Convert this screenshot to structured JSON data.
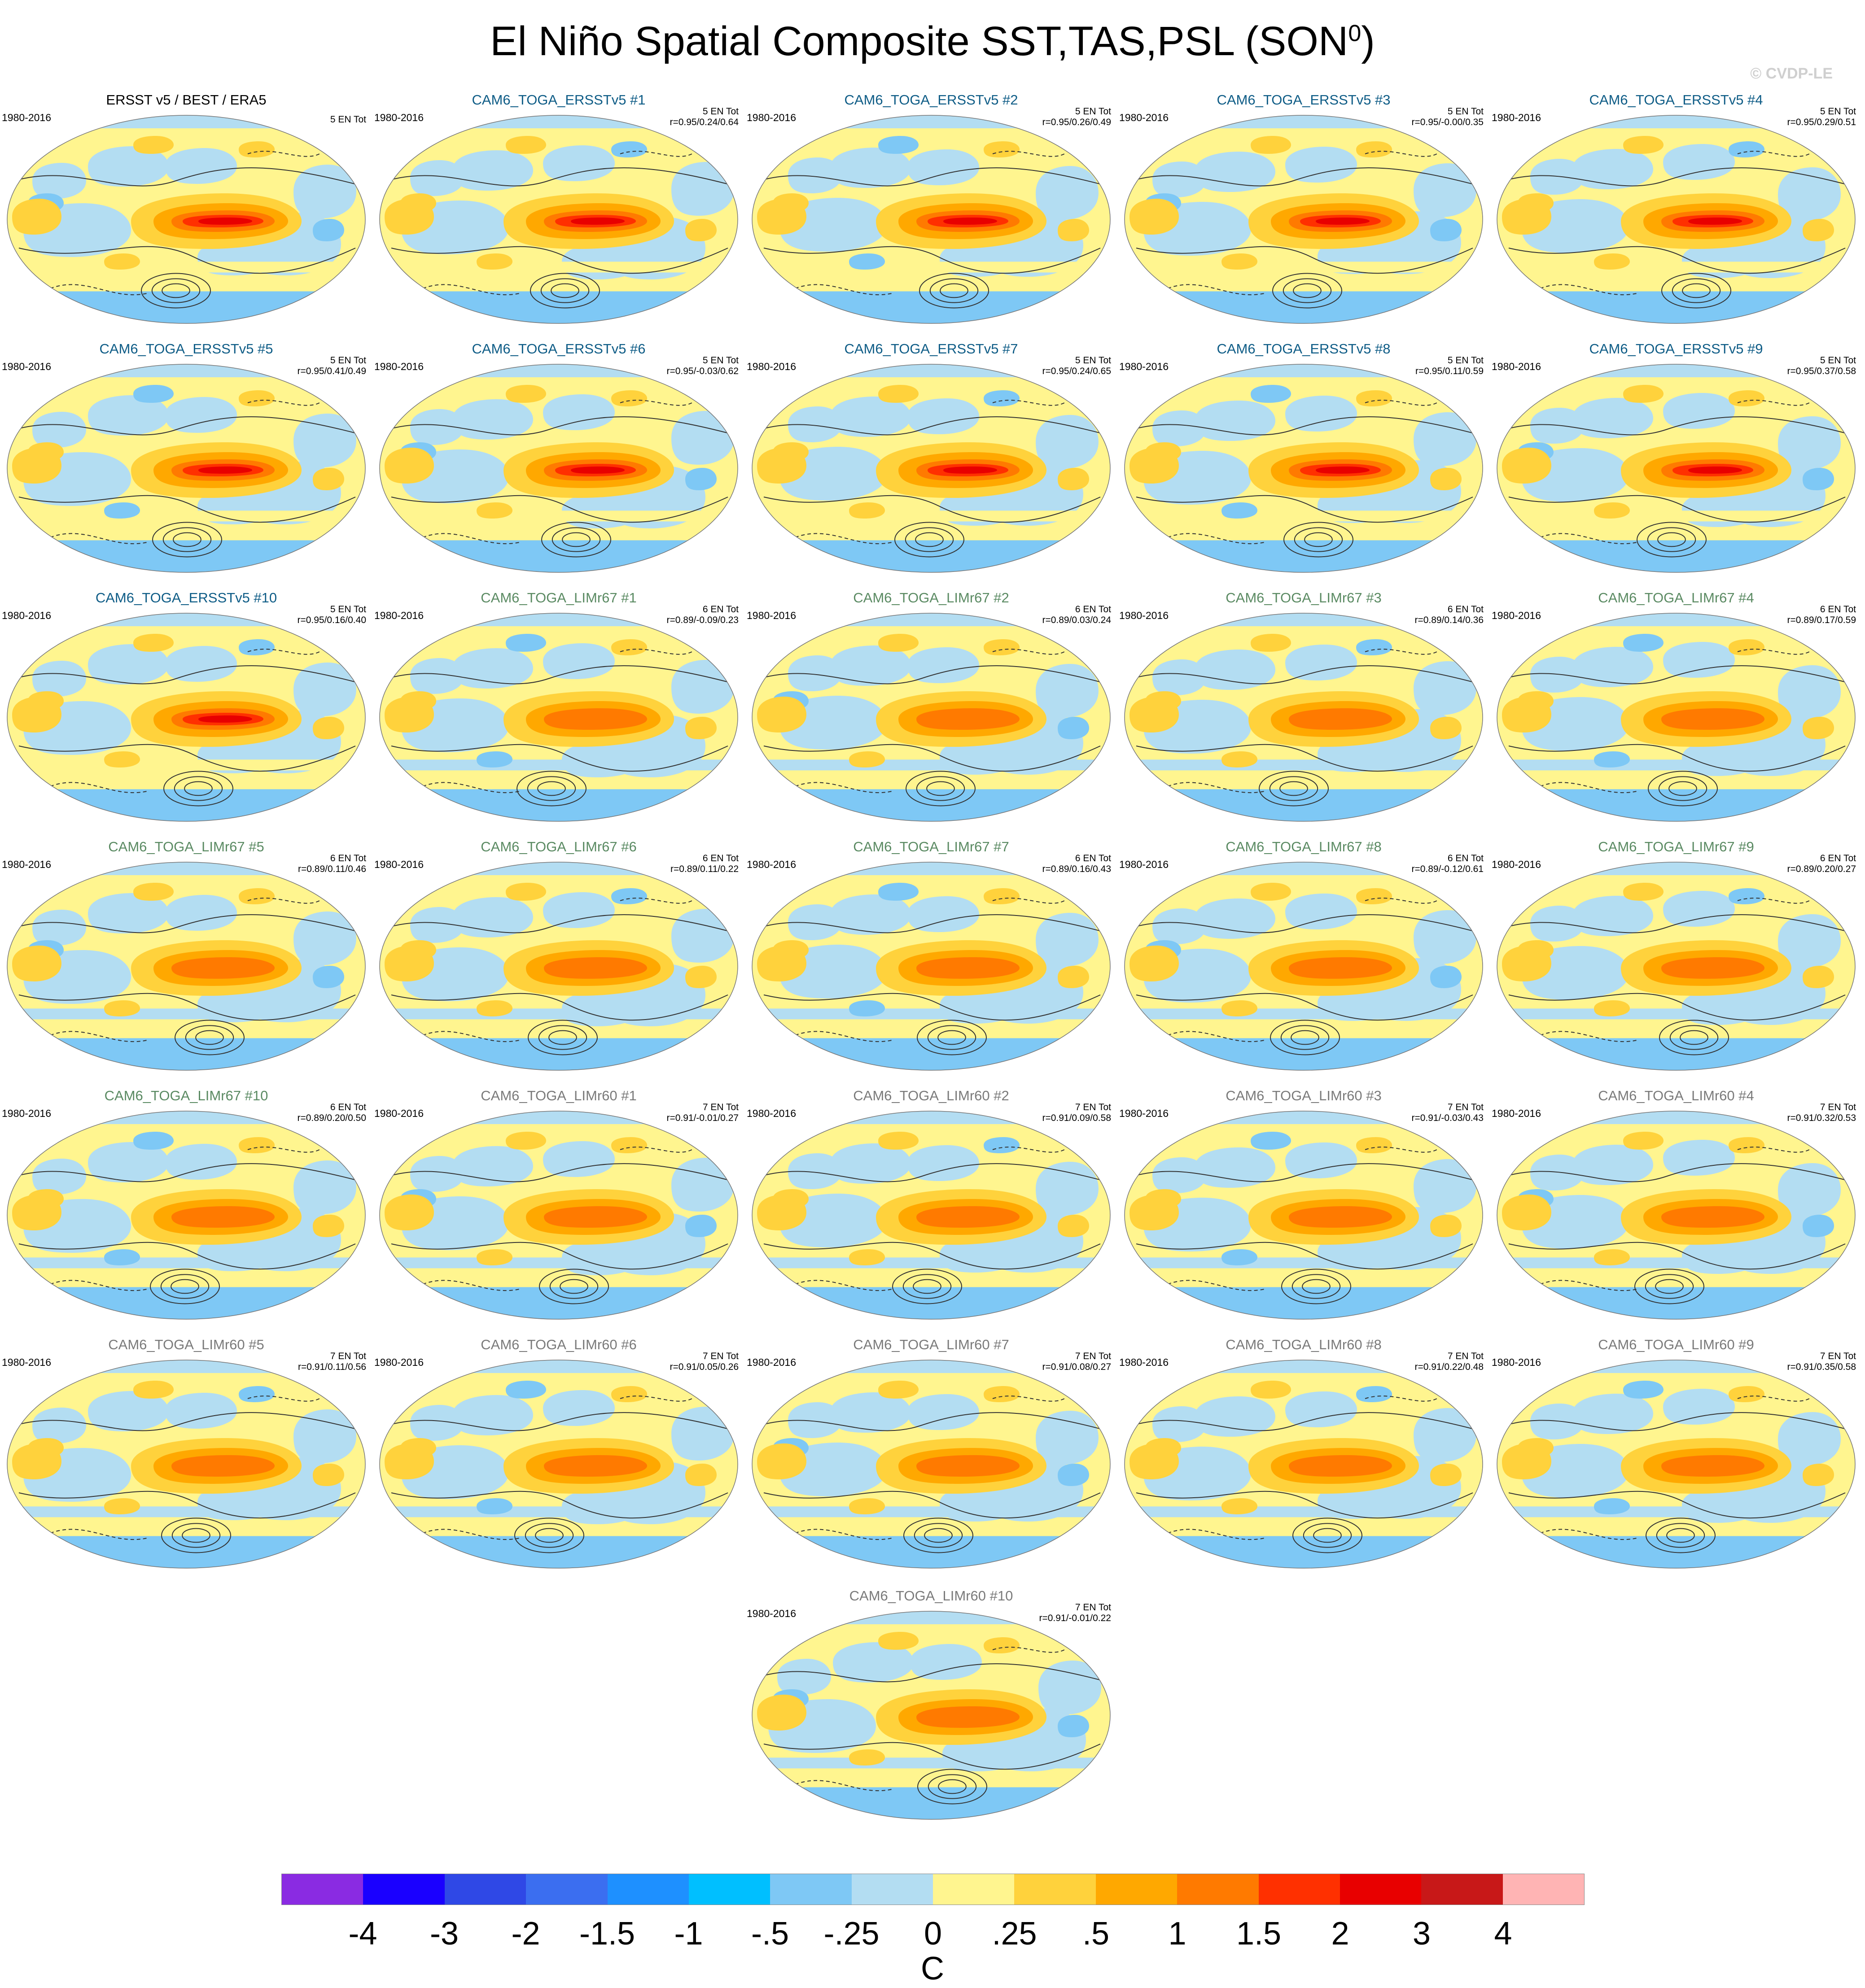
{
  "title": "El Niño Spatial Composite SST,TAS,PSL (SON",
  "title_superscript": "0",
  "title_close": ")",
  "copyright": "© CVDP-LE",
  "colorbar": {
    "colors": [
      "#8a2be2",
      "#1a00ff",
      "#2f48e6",
      "#3b6ef0",
      "#1e90ff",
      "#00bfff",
      "#7ec8f5",
      "#b3ddf2",
      "#fff58f",
      "#ffd23c",
      "#ffa800",
      "#ff7a00",
      "#ff3000",
      "#e80000",
      "#c81818",
      "#ffb4b4"
    ],
    "labels": [
      "-4",
      "-3",
      "-2",
      "-1.5",
      "-1",
      "-.5",
      "-.25",
      "0",
      ".25",
      ".5",
      "1",
      "1.5",
      "2",
      "3",
      "4"
    ],
    "unit": "C"
  },
  "panels": [
    {
      "title": "ERSST v5 / BEST / ERA5",
      "group": "obs",
      "period": "1980-2016",
      "count": "5 EN Tot",
      "corr": ""
    },
    {
      "title": "CAM6_TOGA_ERSSTv5 #1",
      "group": "ersst",
      "period": "1980-2016",
      "count": "5 EN Tot",
      "corr": "r=0.95/0.24/0.64"
    },
    {
      "title": "CAM6_TOGA_ERSSTv5 #2",
      "group": "ersst",
      "period": "1980-2016",
      "count": "5 EN Tot",
      "corr": "r=0.95/0.26/0.49"
    },
    {
      "title": "CAM6_TOGA_ERSSTv5 #3",
      "group": "ersst",
      "period": "1980-2016",
      "count": "5 EN Tot",
      "corr": "r=0.95/-0.00/0.35"
    },
    {
      "title": "CAM6_TOGA_ERSSTv5 #4",
      "group": "ersst",
      "period": "1980-2016",
      "count": "5 EN Tot",
      "corr": "r=0.95/0.29/0.51"
    },
    {
      "title": "CAM6_TOGA_ERSSTv5 #5",
      "group": "ersst",
      "period": "1980-2016",
      "count": "5 EN Tot",
      "corr": "r=0.95/0.41/0.49"
    },
    {
      "title": "CAM6_TOGA_ERSSTv5 #6",
      "group": "ersst",
      "period": "1980-2016",
      "count": "5 EN Tot",
      "corr": "r=0.95/-0.03/0.62"
    },
    {
      "title": "CAM6_TOGA_ERSSTv5 #7",
      "group": "ersst",
      "period": "1980-2016",
      "count": "5 EN Tot",
      "corr": "r=0.95/0.24/0.65"
    },
    {
      "title": "CAM6_TOGA_ERSSTv5 #8",
      "group": "ersst",
      "period": "1980-2016",
      "count": "5 EN Tot",
      "corr": "r=0.95/0.11/0.59"
    },
    {
      "title": "CAM6_TOGA_ERSSTv5 #9",
      "group": "ersst",
      "period": "1980-2016",
      "count": "5 EN Tot",
      "corr": "r=0.95/0.37/0.58"
    },
    {
      "title": "CAM6_TOGA_ERSSTv5 #10",
      "group": "ersst",
      "period": "1980-2016",
      "count": "5 EN Tot",
      "corr": "r=0.95/0.16/0.40"
    },
    {
      "title": "CAM6_TOGA_LIMr67 #1",
      "group": "limr67",
      "period": "1980-2016",
      "count": "6 EN Tot",
      "corr": "r=0.89/-0.09/0.23"
    },
    {
      "title": "CAM6_TOGA_LIMr67 #2",
      "group": "limr67",
      "period": "1980-2016",
      "count": "6 EN Tot",
      "corr": "r=0.89/0.03/0.24"
    },
    {
      "title": "CAM6_TOGA_LIMr67 #3",
      "group": "limr67",
      "period": "1980-2016",
      "count": "6 EN Tot",
      "corr": "r=0.89/0.14/0.36"
    },
    {
      "title": "CAM6_TOGA_LIMr67 #4",
      "group": "limr67",
      "period": "1980-2016",
      "count": "6 EN Tot",
      "corr": "r=0.89/0.17/0.59"
    },
    {
      "title": "CAM6_TOGA_LIMr67 #5",
      "group": "limr67",
      "period": "1980-2016",
      "count": "6 EN Tot",
      "corr": "r=0.89/0.11/0.46"
    },
    {
      "title": "CAM6_TOGA_LIMr67 #6",
      "group": "limr67",
      "period": "1980-2016",
      "count": "6 EN Tot",
      "corr": "r=0.89/0.11/0.22"
    },
    {
      "title": "CAM6_TOGA_LIMr67 #7",
      "group": "limr67",
      "period": "1980-2016",
      "count": "6 EN Tot",
      "corr": "r=0.89/0.16/0.43"
    },
    {
      "title": "CAM6_TOGA_LIMr67 #8",
      "group": "limr67",
      "period": "1980-2016",
      "count": "6 EN Tot",
      "corr": "r=0.89/-0.12/0.61"
    },
    {
      "title": "CAM6_TOGA_LIMr67 #9",
      "group": "limr67",
      "period": "1980-2016",
      "count": "6 EN Tot",
      "corr": "r=0.89/0.20/0.27"
    },
    {
      "title": "CAM6_TOGA_LIMr67 #10",
      "group": "limr67",
      "period": "1980-2016",
      "count": "6 EN Tot",
      "corr": "r=0.89/0.20/0.50"
    },
    {
      "title": "CAM6_TOGA_LIMr60 #1",
      "group": "limr60",
      "period": "1980-2016",
      "count": "7 EN Tot",
      "corr": "r=0.91/-0.01/0.27"
    },
    {
      "title": "CAM6_TOGA_LIMr60 #2",
      "group": "limr60",
      "period": "1980-2016",
      "count": "7 EN Tot",
      "corr": "r=0.91/0.09/0.58"
    },
    {
      "title": "CAM6_TOGA_LIMr60 #3",
      "group": "limr60",
      "period": "1980-2016",
      "count": "7 EN Tot",
      "corr": "r=0.91/-0.03/0.43"
    },
    {
      "title": "CAM6_TOGA_LIMr60 #4",
      "group": "limr60",
      "period": "1980-2016",
      "count": "7 EN Tot",
      "corr": "r=0.91/0.32/0.53"
    },
    {
      "title": "CAM6_TOGA_LIMr60 #5",
      "group": "limr60",
      "period": "1980-2016",
      "count": "7 EN Tot",
      "corr": "r=0.91/0.11/0.56"
    },
    {
      "title": "CAM6_TOGA_LIMr60 #6",
      "group": "limr60",
      "period": "1980-2016",
      "count": "7 EN Tot",
      "corr": "r=0.91/0.05/0.26"
    },
    {
      "title": "CAM6_TOGA_LIMr60 #7",
      "group": "limr60",
      "period": "1980-2016",
      "count": "7 EN Tot",
      "corr": "r=0.91/0.08/0.27"
    },
    {
      "title": "CAM6_TOGA_LIMr60 #8",
      "group": "limr60",
      "period": "1980-2016",
      "count": "7 EN Tot",
      "corr": "r=0.91/0.22/0.48"
    },
    {
      "title": "CAM6_TOGA_LIMr60 #9",
      "group": "limr60",
      "period": "1980-2016",
      "count": "7 EN Tot",
      "corr": "r=0.91/0.35/0.58"
    },
    {
      "title": "CAM6_TOGA_LIMr60 #10",
      "group": "limr60",
      "period": "1980-2016",
      "count": "7 EN Tot",
      "corr": "r=0.91/-0.01/0.22"
    }
  ],
  "chart_data": {
    "type": "heatmap",
    "title": "El Niño Spatial Composite SST,TAS,PSL (SON0)",
    "variables": [
      "SST",
      "TAS",
      "PSL"
    ],
    "season": "SON",
    "period": "1980-2016",
    "projection": "global ellipse (Robinson-like)",
    "colorbar_levels": [
      -4,
      -3,
      -2,
      -1.5,
      -1,
      -0.5,
      -0.25,
      0,
      0.25,
      0.5,
      1,
      1.5,
      2,
      3,
      4
    ],
    "unit": "C",
    "contours": "PSL (solid positive, dashed negative)",
    "panels": [
      {
        "name": "ERSST v5 / BEST / ERA5",
        "events": 5
      },
      {
        "name": "CAM6_TOGA_ERSSTv5 #1",
        "events": 5,
        "r": [
          0.95,
          0.24,
          0.64
        ]
      },
      {
        "name": "CAM6_TOGA_ERSSTv5 #2",
        "events": 5,
        "r": [
          0.95,
          0.26,
          0.49
        ]
      },
      {
        "name": "CAM6_TOGA_ERSSTv5 #3",
        "events": 5,
        "r": [
          0.95,
          -0.0,
          0.35
        ]
      },
      {
        "name": "CAM6_TOGA_ERSSTv5 #4",
        "events": 5,
        "r": [
          0.95,
          0.29,
          0.51
        ]
      },
      {
        "name": "CAM6_TOGA_ERSSTv5 #5",
        "events": 5,
        "r": [
          0.95,
          0.41,
          0.49
        ]
      },
      {
        "name": "CAM6_TOGA_ERSSTv5 #6",
        "events": 5,
        "r": [
          0.95,
          -0.03,
          0.62
        ]
      },
      {
        "name": "CAM6_TOGA_ERSSTv5 #7",
        "events": 5,
        "r": [
          0.95,
          0.24,
          0.65
        ]
      },
      {
        "name": "CAM6_TOGA_ERSSTv5 #8",
        "events": 5,
        "r": [
          0.95,
          0.11,
          0.59
        ]
      },
      {
        "name": "CAM6_TOGA_ERSSTv5 #9",
        "events": 5,
        "r": [
          0.95,
          0.37,
          0.58
        ]
      },
      {
        "name": "CAM6_TOGA_ERSSTv5 #10",
        "events": 5,
        "r": [
          0.95,
          0.16,
          0.4
        ]
      },
      {
        "name": "CAM6_TOGA_LIMr67 #1",
        "events": 6,
        "r": [
          0.89,
          -0.09,
          0.23
        ]
      },
      {
        "name": "CAM6_TOGA_LIMr67 #2",
        "events": 6,
        "r": [
          0.89,
          0.03,
          0.24
        ]
      },
      {
        "name": "CAM6_TOGA_LIMr67 #3",
        "events": 6,
        "r": [
          0.89,
          0.14,
          0.36
        ]
      },
      {
        "name": "CAM6_TOGA_LIMr67 #4",
        "events": 6,
        "r": [
          0.89,
          0.17,
          0.59
        ]
      },
      {
        "name": "CAM6_TOGA_LIMr67 #5",
        "events": 6,
        "r": [
          0.89,
          0.11,
          0.46
        ]
      },
      {
        "name": "CAM6_TOGA_LIMr67 #6",
        "events": 6,
        "r": [
          0.89,
          0.11,
          0.22
        ]
      },
      {
        "name": "CAM6_TOGA_LIMr67 #7",
        "events": 6,
        "r": [
          0.89,
          0.16,
          0.43
        ]
      },
      {
        "name": "CAM6_TOGA_LIMr67 #8",
        "events": 6,
        "r": [
          0.89,
          -0.12,
          0.61
        ]
      },
      {
        "name": "CAM6_TOGA_LIMr67 #9",
        "events": 6,
        "r": [
          0.89,
          0.2,
          0.27
        ]
      },
      {
        "name": "CAM6_TOGA_LIMr67 #10",
        "events": 6,
        "r": [
          0.89,
          0.2,
          0.5
        ]
      },
      {
        "name": "CAM6_TOGA_LIMr60 #1",
        "events": 7,
        "r": [
          0.91,
          -0.01,
          0.27
        ]
      },
      {
        "name": "CAM6_TOGA_LIMr60 #2",
        "events": 7,
        "r": [
          0.91,
          0.09,
          0.58
        ]
      },
      {
        "name": "CAM6_TOGA_LIMr60 #3",
        "events": 7,
        "r": [
          0.91,
          -0.03,
          0.43
        ]
      },
      {
        "name": "CAM6_TOGA_LIMr60 #4",
        "events": 7,
        "r": [
          0.91,
          0.32,
          0.53
        ]
      },
      {
        "name": "CAM6_TOGA_LIMr60 #5",
        "events": 7,
        "r": [
          0.91,
          0.11,
          0.56
        ]
      },
      {
        "name": "CAM6_TOGA_LIMr60 #6",
        "events": 7,
        "r": [
          0.91,
          0.05,
          0.26
        ]
      },
      {
        "name": "CAM6_TOGA_LIMr60 #7",
        "events": 7,
        "r": [
          0.91,
          0.08,
          0.27
        ]
      },
      {
        "name": "CAM6_TOGA_LIMr60 #8",
        "events": 7,
        "r": [
          0.91,
          0.22,
          0.48
        ]
      },
      {
        "name": "CAM6_TOGA_LIMr60 #9",
        "events": 7,
        "r": [
          0.91,
          0.35,
          0.58
        ]
      },
      {
        "name": "CAM6_TOGA_LIMr60 #10",
        "events": 7,
        "r": [
          0.91,
          -0.01,
          0.22
        ]
      }
    ]
  }
}
